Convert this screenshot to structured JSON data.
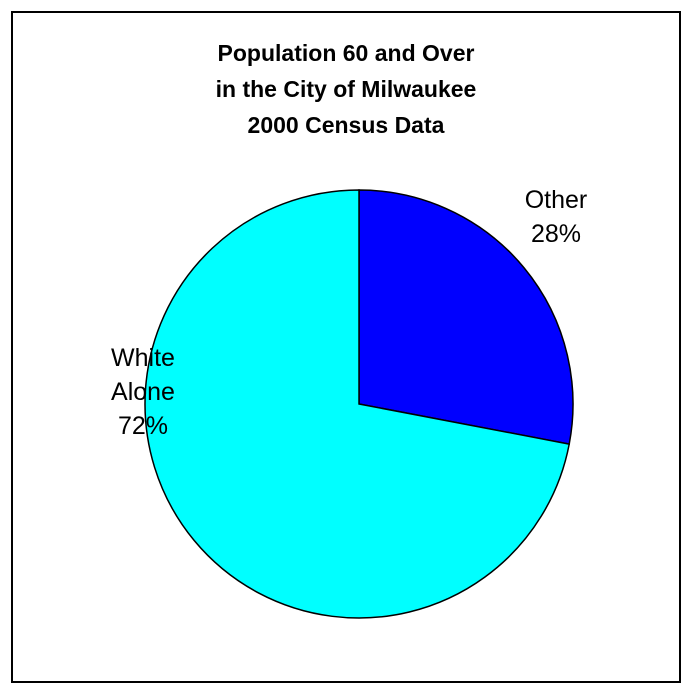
{
  "chart_data": {
    "type": "pie",
    "title_lines": [
      "Population 60 and Over",
      "in the City of Milwaukee",
      "2000 Census Data"
    ],
    "slices": [
      {
        "name": "Other",
        "value": 28,
        "label_lines": [
          "Other",
          "28%"
        ],
        "color": "#0000ff"
      },
      {
        "name": "White Alone",
        "value": 72,
        "label_lines": [
          "White",
          "Alone",
          "72%"
        ],
        "color": "#00ffff"
      }
    ],
    "start_angle_deg": 0,
    "direction": "clockwise",
    "legend": "none"
  }
}
